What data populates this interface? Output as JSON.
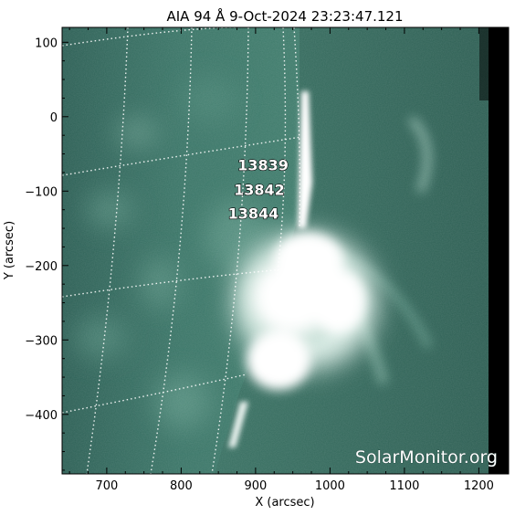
{
  "title": "AIA 94 Å   9-Oct-2024 23:23:47.121",
  "x_axis": {
    "label": "X (arcsec)",
    "range": [
      640,
      1240
    ],
    "ticks": [
      "700",
      "800",
      "900",
      "1000",
      "1100",
      "1200"
    ],
    "tick_values": [
      700,
      800,
      900,
      1000,
      1100,
      1200
    ]
  },
  "y_axis": {
    "label": "Y (arcsec)",
    "range": [
      -480,
      120
    ],
    "ticks": [
      "100",
      "0",
      "−100",
      "−200",
      "−300",
      "−400"
    ],
    "tick_values": [
      100,
      0,
      -100,
      -200,
      -300,
      -400
    ]
  },
  "regions": [
    {
      "id": "13839",
      "label": "13839",
      "x": 910,
      "y": -72
    },
    {
      "id": "13842",
      "label": "13842",
      "x": 905,
      "y": -105
    },
    {
      "id": "13844",
      "label": "13844",
      "x": 897,
      "y": -137
    }
  ],
  "limb_x_arcsec": 963,
  "data_edge_x_arcsec": 1220,
  "watermark": "SolarMonitor.org",
  "colors": {
    "background": "#ffffff",
    "image_base": "#2a5c52",
    "image_bright": "#ffffff",
    "off_image": "#000000",
    "grid": "#ffffff"
  }
}
